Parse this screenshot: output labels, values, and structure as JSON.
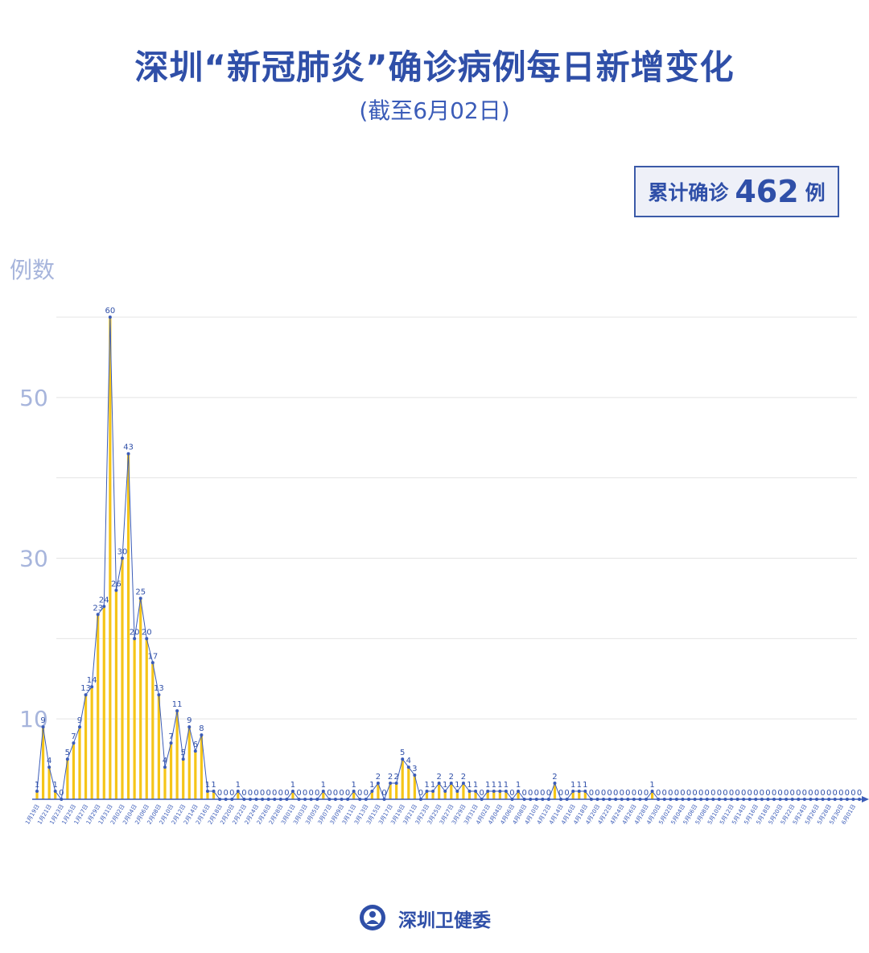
{
  "chart_data": {
    "type": "line",
    "title": "深圳“新冠肺炎”确诊病例每日新增变化",
    "subtitle": "(截至6月02日)",
    "summary": {
      "prefix": "累计确诊",
      "value": 462,
      "suffix": "例"
    },
    "y_label": "例数",
    "source": "深圳卫健委",
    "bar_color": "#f5c518",
    "line_color": "#3b5cb8",
    "ylim": [
      0,
      60
    ],
    "yticks": [
      10,
      {
        "value": 20,
        "label": null
      },
      30,
      {
        "value": 40,
        "label": null
      },
      50,
      {
        "value": 60,
        "label": null
      }
    ],
    "grid": true,
    "categories": [
      "1月19日",
      null,
      "1月21日",
      null,
      "1月23日",
      null,
      "1月25日",
      null,
      "1月27日",
      null,
      "1月29日",
      null,
      "1月31日",
      null,
      "2月02日",
      null,
      "2月04日",
      null,
      "2月06日",
      null,
      "2月08日",
      null,
      "2月10日",
      null,
      "2月12日",
      null,
      "2月14日",
      null,
      "2月16日",
      null,
      "2月18日",
      null,
      "2月20日",
      null,
      "2月22日",
      null,
      "2月24日",
      null,
      "2月26日",
      null,
      "2月28日",
      null,
      "3月01日",
      null,
      "3月03日",
      null,
      "3月05日",
      null,
      "3月07日",
      null,
      "3月09日",
      null,
      "3月11日",
      null,
      "3月13日",
      null,
      "3月15日",
      null,
      "3月17日",
      null,
      "3月19日",
      null,
      "3月21日",
      null,
      "3月23日",
      null,
      "3月25日",
      null,
      "3月27日",
      null,
      "3月29日",
      null,
      "3月31日",
      null,
      "4月02日",
      null,
      "4月04日",
      null,
      "4月06日",
      null,
      "4月08日",
      null,
      "4月10日",
      null,
      "4月12日",
      null,
      "4月14日",
      null,
      "4月16日",
      null,
      "4月18日",
      null,
      "4月20日",
      null,
      "4月22日",
      null,
      "4月24日",
      null,
      "4月26日",
      null,
      "4月28日",
      null,
      "4月30日",
      null,
      "5月02日",
      null,
      "5月04日",
      null,
      "5月06日",
      null,
      "5月08日",
      null,
      "5月10日",
      null,
      "5月12日",
      null,
      "5月14日",
      null,
      "5月16日",
      null,
      "5月18日",
      null,
      "5月20日",
      null,
      "5月22日",
      null,
      "5月24日",
      null,
      "5月26日",
      null,
      "5月28日",
      null,
      "5月30日",
      null,
      "6月01日",
      null
    ],
    "values": [
      1,
      9,
      4,
      1,
      0,
      5,
      7,
      9,
      13,
      14,
      23,
      24,
      60,
      26,
      30,
      43,
      20,
      25,
      20,
      17,
      13,
      4,
      7,
      11,
      5,
      9,
      6,
      8,
      1,
      1,
      0,
      0,
      0,
      1,
      0,
      0,
      0,
      0,
      0,
      0,
      0,
      0,
      1,
      0,
      0,
      0,
      0,
      1,
      0,
      0,
      0,
      0,
      1,
      0,
      0,
      1,
      2,
      0,
      2,
      2,
      5,
      4,
      3,
      0,
      1,
      1,
      2,
      1,
      2,
      1,
      2,
      1,
      1,
      0,
      1,
      1,
      1,
      1,
      0,
      1,
      0,
      0,
      0,
      0,
      0,
      2,
      0,
      0,
      1,
      1,
      1,
      0,
      0,
      0,
      0,
      0,
      0,
      0,
      0,
      0,
      0,
      1,
      0,
      0,
      0,
      0,
      0,
      0,
      0,
      0,
      0,
      0,
      0,
      0,
      0,
      0,
      0,
      0,
      0,
      0,
      0,
      0,
      0,
      0,
      0,
      0,
      0,
      0,
      0,
      0,
      0,
      0,
      0,
      0,
      0,
      0
    ]
  }
}
